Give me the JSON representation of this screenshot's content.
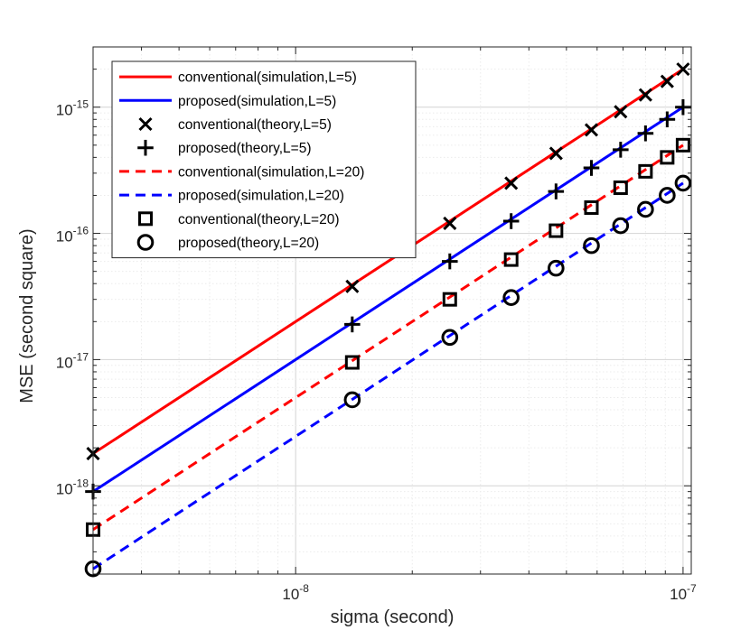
{
  "chart_data": {
    "type": "line",
    "title": "",
    "xlabel": "sigma (second)",
    "ylabel": "MSE (second square)",
    "xscale": "log",
    "yscale": "log",
    "xlim": [
      3e-09,
      1.05e-07
    ],
    "ylim": [
      2e-19,
      3e-15
    ],
    "grid": true,
    "minor_grid": true,
    "legend_position": "top-left",
    "x_ticks": [
      {
        "value": 1e-08,
        "base": "10",
        "exp": "-8"
      },
      {
        "value": 1e-07,
        "base": "10",
        "exp": "-7"
      }
    ],
    "y_ticks": [
      {
        "value": 1e-18,
        "base": "10",
        "exp": "-18"
      },
      {
        "value": 1e-17,
        "base": "10",
        "exp": "-17"
      },
      {
        "value": 1e-16,
        "base": "10",
        "exp": "-16"
      },
      {
        "value": 1e-15,
        "base": "10",
        "exp": "-15"
      }
    ],
    "series": [
      {
        "name": "conventional(simulation,L=5)",
        "kind": "line",
        "style": "solid",
        "color": "#ff0000",
        "x": [
          3e-09,
          1e-07
        ],
        "y": [
          1.8e-18,
          2e-15
        ]
      },
      {
        "name": "proposed(simulation,L=5)",
        "kind": "line",
        "style": "solid",
        "color": "#0000ff",
        "x": [
          3e-09,
          1e-07
        ],
        "y": [
          9e-19,
          1e-15
        ]
      },
      {
        "name": "conventional(theory,L=5)",
        "kind": "marker",
        "marker": "x",
        "color": "#000000",
        "x": [
          3e-09,
          1.4e-08,
          2.5e-08,
          3.6e-08,
          4.7e-08,
          5.8e-08,
          6.9e-08,
          8e-08,
          9.1e-08,
          1e-07
        ],
        "y": [
          1.8e-18,
          3.8e-17,
          1.2e-16,
          2.5e-16,
          4.3e-16,
          6.6e-16,
          9.2e-16,
          1.25e-15,
          1.6e-15,
          2e-15
        ]
      },
      {
        "name": "proposed(theory,L=5)",
        "kind": "marker",
        "marker": "plus",
        "color": "#000000",
        "x": [
          3e-09,
          1.4e-08,
          2.5e-08,
          3.6e-08,
          4.7e-08,
          5.8e-08,
          6.9e-08,
          8e-08,
          9.1e-08,
          1e-07
        ],
        "y": [
          9e-19,
          1.9e-17,
          6e-17,
          1.25e-16,
          2.15e-16,
          3.3e-16,
          4.6e-16,
          6.2e-16,
          8e-16,
          1e-15
        ]
      },
      {
        "name": "conventional(simulation,L=20)",
        "kind": "line",
        "style": "dashed",
        "color": "#ff0000",
        "x": [
          3e-09,
          1e-07
        ],
        "y": [
          4.5e-19,
          5e-16
        ]
      },
      {
        "name": "proposed(simulation,L=20)",
        "kind": "line",
        "style": "dashed",
        "color": "#0000ff",
        "x": [
          3e-09,
          1e-07
        ],
        "y": [
          2.2e-19,
          2.5e-16
        ]
      },
      {
        "name": "conventional(theory,L=20)",
        "kind": "marker",
        "marker": "square",
        "color": "#000000",
        "x": [
          3e-09,
          1.4e-08,
          2.5e-08,
          3.6e-08,
          4.7e-08,
          5.8e-08,
          6.9e-08,
          8e-08,
          9.1e-08,
          1e-07
        ],
        "y": [
          4.5e-19,
          9.5e-18,
          3e-17,
          6.2e-17,
          1.05e-16,
          1.6e-16,
          2.3e-16,
          3.1e-16,
          4e-16,
          5e-16
        ]
      },
      {
        "name": "proposed(theory,L=20)",
        "kind": "marker",
        "marker": "circle",
        "color": "#000000",
        "x": [
          3e-09,
          1.4e-08,
          2.5e-08,
          3.6e-08,
          4.7e-08,
          5.8e-08,
          6.9e-08,
          8e-08,
          9.1e-08,
          1e-07
        ],
        "y": [
          2.2e-19,
          4.8e-18,
          1.5e-17,
          3.1e-17,
          5.3e-17,
          8e-17,
          1.15e-16,
          1.55e-16,
          2e-16,
          2.5e-16
        ]
      }
    ]
  }
}
